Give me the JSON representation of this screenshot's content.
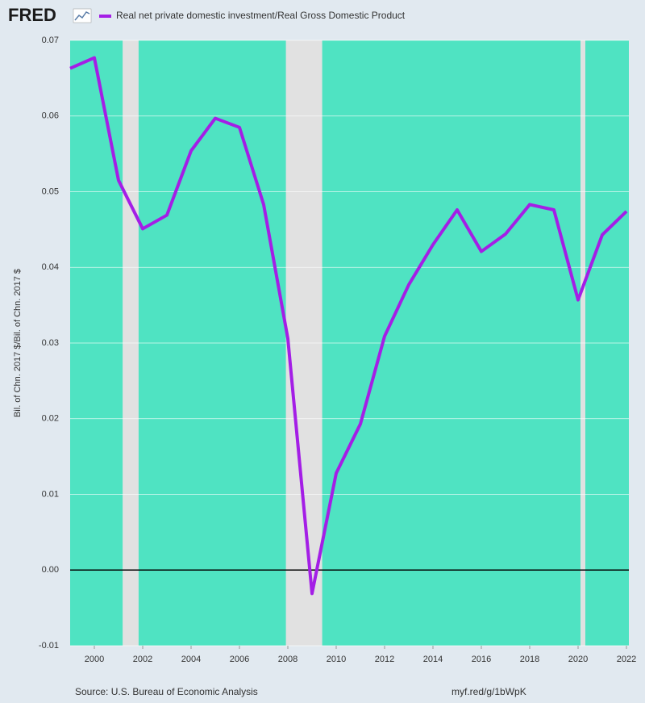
{
  "chart_data": {
    "type": "line",
    "logo": "FRED",
    "y_label": "Bil. of Chn. 2017 $/Bil. of Chn. 2017 $",
    "source": "Source: U.S. Bureau of Economic Analysis",
    "link": "myf.red/g/1bWpK",
    "x": [
      1999,
      2000,
      2001,
      2002,
      2003,
      2004,
      2005,
      2006,
      2007,
      2008,
      2009,
      2010,
      2011,
      2012,
      2013,
      2014,
      2015,
      2016,
      2017,
      2018,
      2019,
      2020,
      2021,
      2022
    ],
    "series": [
      {
        "name": "Real net private domestic investment/Real Gross Domestic Product",
        "color": "#a41ee6",
        "values": [
          0.0663,
          0.0677,
          0.0515,
          0.0451,
          0.0469,
          0.0554,
          0.0597,
          0.0585,
          0.0483,
          0.0306,
          -0.0031,
          0.0128,
          0.0193,
          0.0309,
          0.0377,
          0.043,
          0.0476,
          0.0421,
          0.0444,
          0.0483,
          0.0476,
          0.0357,
          0.0443,
          0.0474
        ]
      }
    ],
    "shaded_periods": [
      [
        2001.17,
        2001.83
      ],
      [
        2007.92,
        2009.42
      ],
      [
        2020.1,
        2020.3
      ]
    ],
    "shade_color": "#e1e1e1",
    "plot_color": "#4fe3c2",
    "xlim": [
      1999,
      2022.1
    ],
    "xticks": [
      2000,
      2002,
      2004,
      2006,
      2008,
      2010,
      2012,
      2014,
      2016,
      2018,
      2020,
      2022
    ],
    "ylim": [
      -0.01,
      0.07
    ],
    "yticks": [
      -0.01,
      {
        "value": 0,
        "label": "0.00"
      },
      0.01,
      0.02,
      0.03,
      0.04,
      0.05,
      0.06,
      0.07
    ],
    "grid": true
  }
}
